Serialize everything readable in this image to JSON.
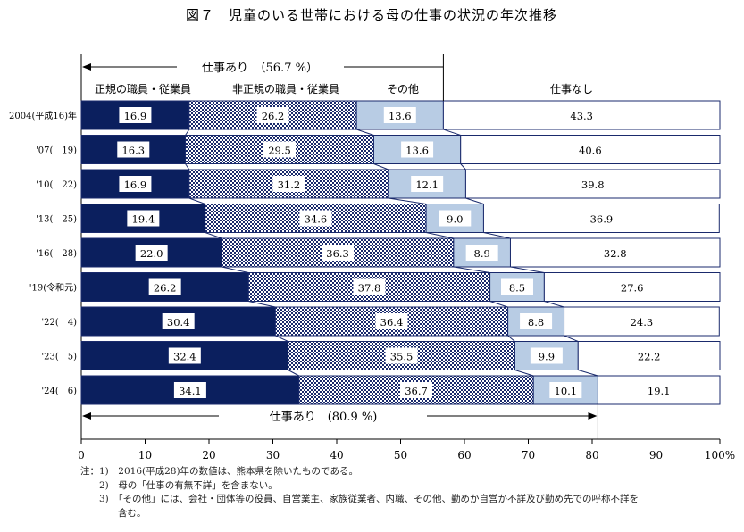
{
  "chart_data": {
    "type": "bar",
    "orientation": "horizontal",
    "stacked": true,
    "title": "図７　児童のいる世帯における母の仕事の状況の年次推移",
    "categories": [
      "2004(平成16)年",
      "'07(　19)",
      "'10(　22)",
      "'13(　25)",
      "'16(　28)",
      "'19(令和元)",
      "'22(　4)",
      "'23(　5)",
      "'24(　6)"
    ],
    "series": [
      {
        "name": "正規の職員・従業員",
        "color": "#0b1f5e",
        "pattern": "solid",
        "values": [
          16.9,
          16.3,
          16.9,
          19.4,
          22.0,
          26.2,
          30.4,
          32.4,
          34.1
        ]
      },
      {
        "name": "非正規の職員・従業員",
        "color": "#1a2a6c",
        "pattern": "checkered",
        "values": [
          26.2,
          29.5,
          31.2,
          34.6,
          36.3,
          37.8,
          36.4,
          35.5,
          36.7
        ]
      },
      {
        "name": "その他",
        "color": "#b8cce4",
        "pattern": "solid",
        "values": [
          13.6,
          13.6,
          12.1,
          9.0,
          8.9,
          8.5,
          8.8,
          9.9,
          10.1
        ]
      },
      {
        "name": "仕事なし",
        "color": "#ffffff",
        "pattern": "solid",
        "values": [
          43.3,
          40.6,
          39.8,
          36.9,
          32.8,
          27.6,
          24.3,
          22.2,
          19.1
        ]
      }
    ],
    "xlim": [
      0,
      100
    ],
    "xticks": [
      "0",
      "10",
      "20",
      "30",
      "40",
      "50",
      "60",
      "70",
      "80",
      "90",
      "100%"
    ],
    "annotations": {
      "top": {
        "label": "仕事あり　（56.7 %）",
        "value": 56.7
      },
      "bottom": {
        "label": "仕事あり　(80.9 %)",
        "value": 80.9
      }
    },
    "grid": false
  },
  "notes": [
    "注：1)　2016(平成28)年の数値は、熊本県を除いたものである。",
    "　　2)　母の「仕事の有無不詳」を含まない。",
    "　　3)　「その他」には、会社・団体等の役員、自営業主、家族従業者、内職、その他、勤めか自営か不詳及び勤め先での呼称不詳を",
    "　　　　含む。"
  ]
}
